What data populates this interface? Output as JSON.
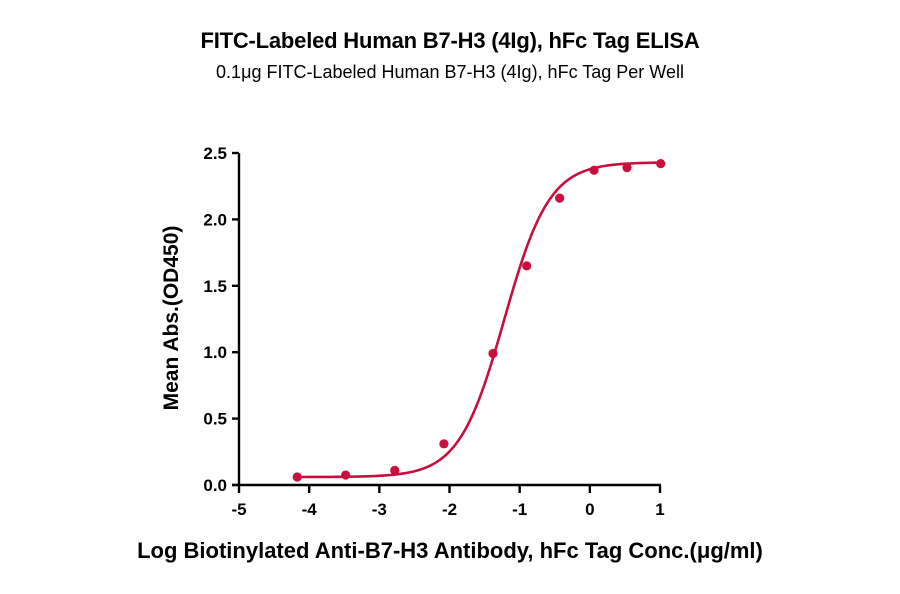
{
  "chart_data": {
    "type": "line",
    "title": "FITC-Labeled Human B7-H3 (4Ig), hFc Tag ELISA",
    "subtitle": "0.1μg FITC-Labeled Human B7-H3 (4Ig), hFc Tag Per Well",
    "xlabel": "Log Biotinylated Anti-B7-H3 Antibody, hFc Tag Conc.(μg/ml)",
    "ylabel": "Mean Abs.(OD450)",
    "xlim": [
      -5,
      1
    ],
    "ylim": [
      0,
      2.5
    ],
    "xticks": [
      -5,
      -4,
      -3,
      -2,
      -1,
      0,
      1
    ],
    "xtick_labels": [
      "-5",
      "-4",
      "-3",
      "-2",
      "-1",
      "0",
      "1"
    ],
    "yticks": [
      0,
      0.5,
      1.0,
      1.5,
      2.0,
      2.5
    ],
    "ytick_labels": [
      "0.0",
      "0.5",
      "1.0",
      "1.5",
      "2.0",
      "2.5"
    ],
    "grid": false,
    "legend": null,
    "color": "#C8103E",
    "series": [
      {
        "name": "ELISA",
        "x": [
          -4.17,
          -3.48,
          -2.78,
          -2.08,
          -1.38,
          -0.9,
          -0.43,
          0.06,
          0.53,
          1.01
        ],
        "y": [
          0.06,
          0.075,
          0.11,
          0.31,
          0.99,
          1.65,
          2.16,
          2.37,
          2.39,
          2.42
        ],
        "fit": {
          "model": "4PL",
          "bottom": 0.06,
          "top": 2.43,
          "logEC50": -1.22,
          "hill": 1.35
        }
      }
    ]
  }
}
